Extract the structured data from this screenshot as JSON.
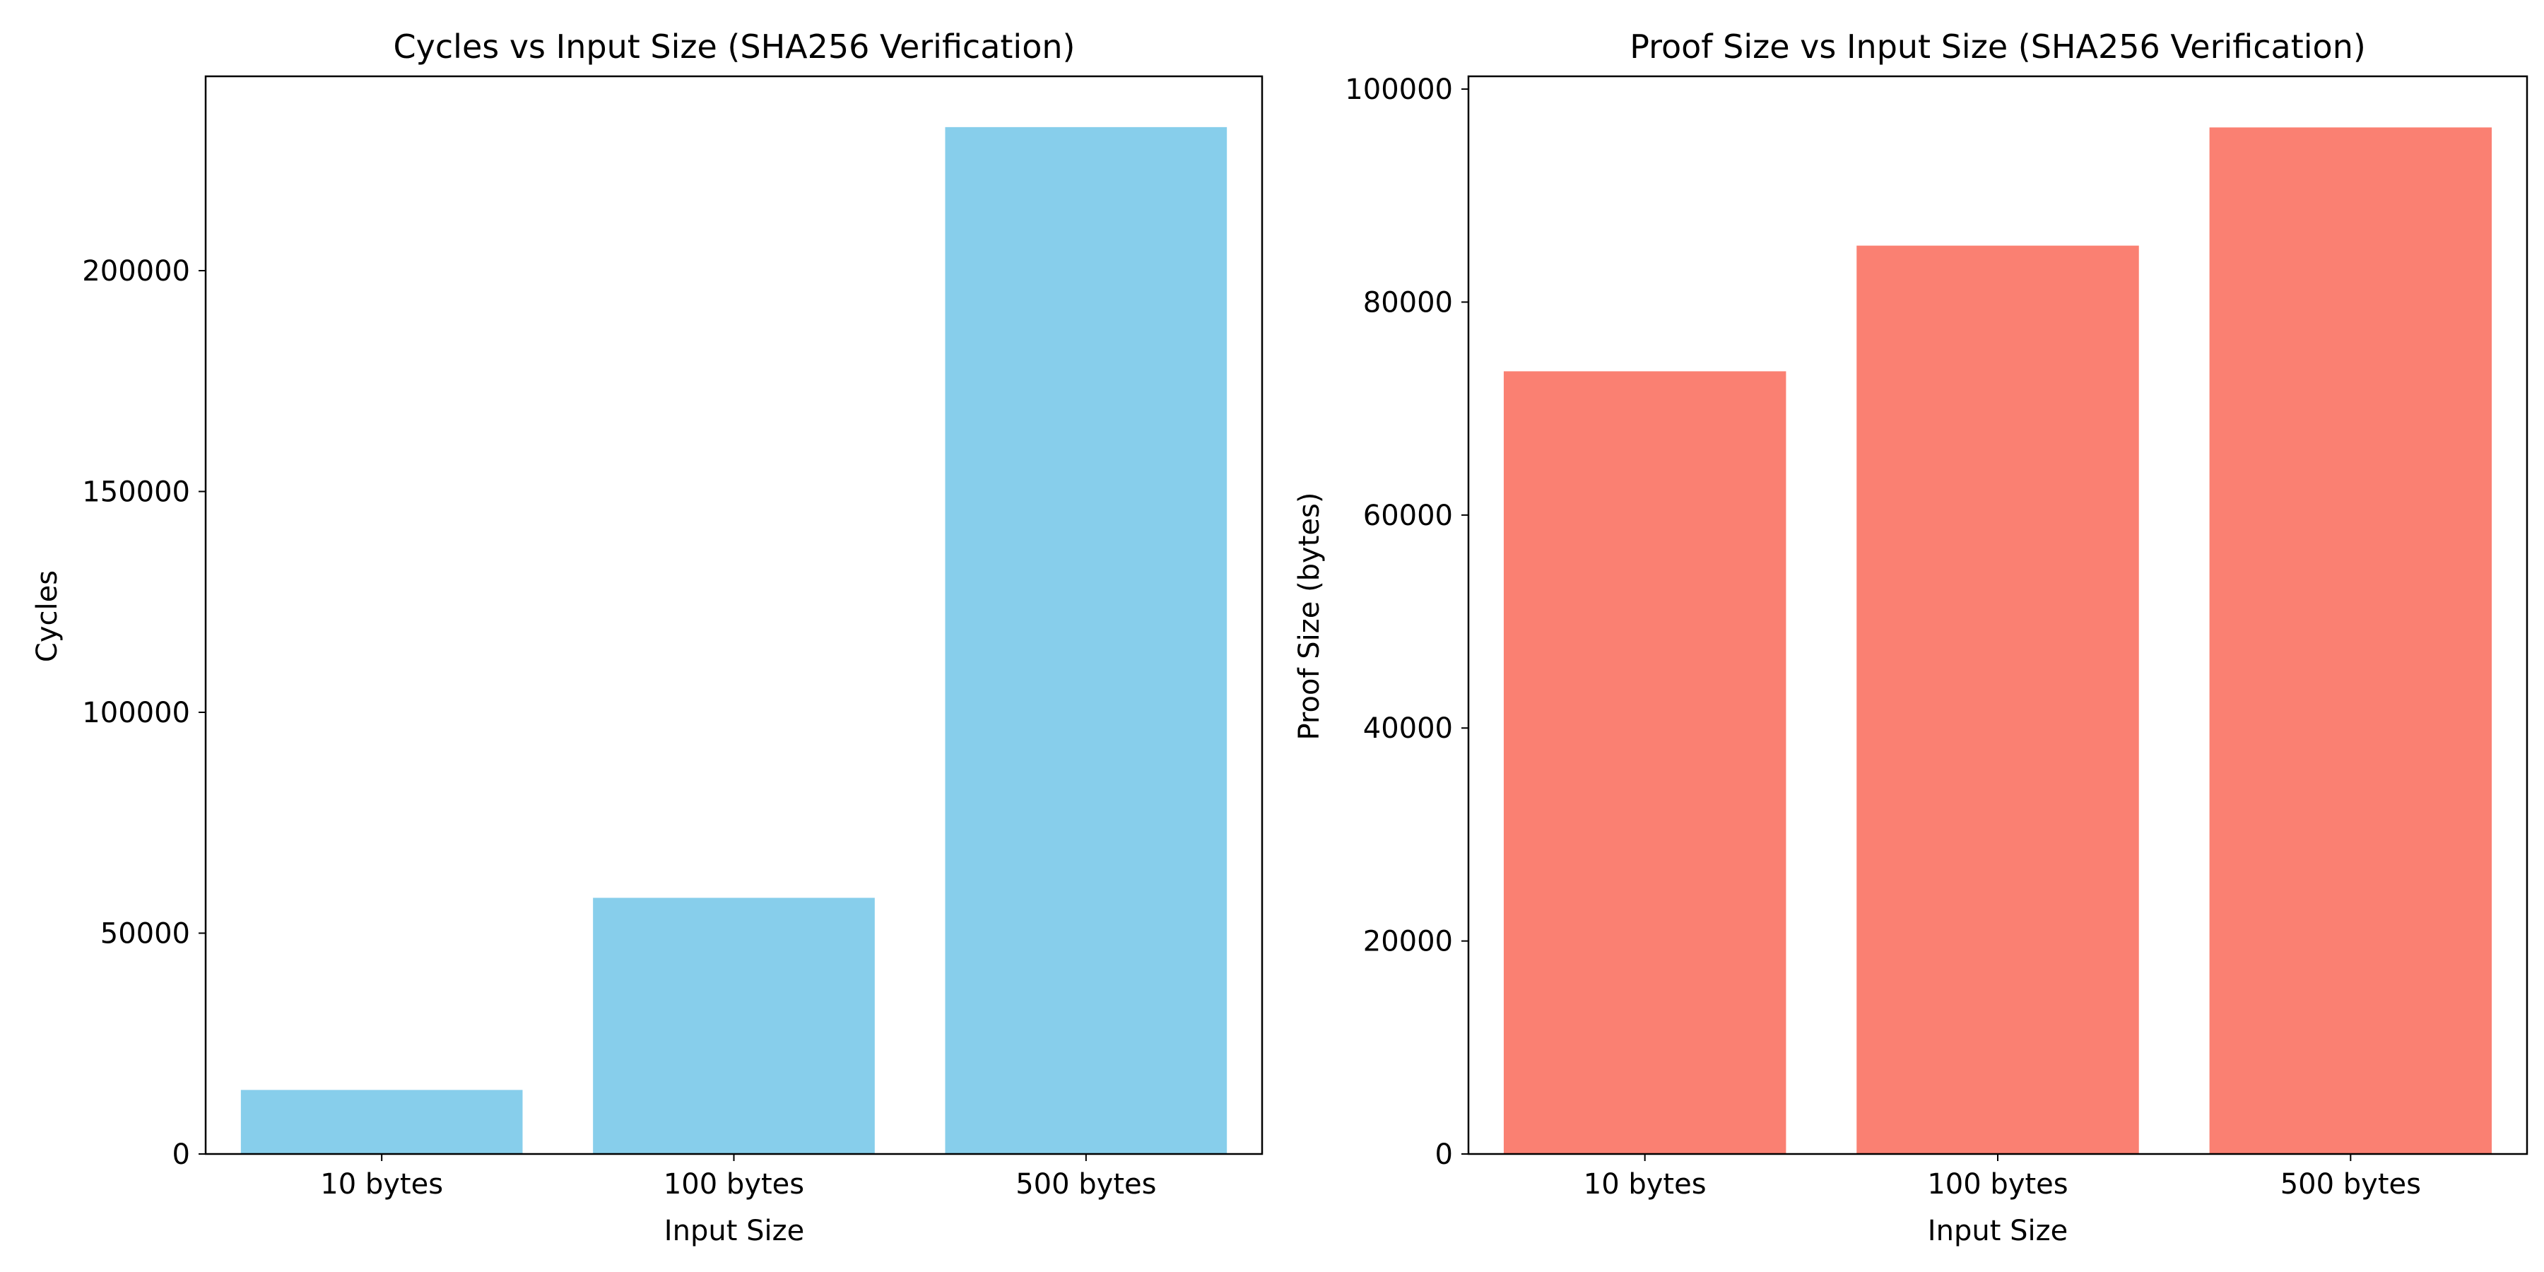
{
  "chart_data": [
    {
      "type": "bar",
      "title": "Cycles vs Input Size (SHA256 Verification)",
      "xlabel": "Input Size",
      "ylabel": "Cycles",
      "categories": [
        "10 bytes",
        "100 bytes",
        "500 bytes"
      ],
      "values": [
        14500,
        58000,
        232500
      ],
      "ylim": [
        0,
        244000
      ],
      "yticks": [
        0,
        50000,
        100000,
        150000,
        200000
      ],
      "color": "#87CEEB",
      "grid": false
    },
    {
      "type": "bar",
      "title": "Proof Size vs Input Size (SHA256 Verification)",
      "xlabel": "Input Size",
      "ylabel": "Proof Size (bytes)",
      "categories": [
        "10 bytes",
        "100 bytes",
        "500 bytes"
      ],
      "values": [
        73500,
        85300,
        96400
      ],
      "ylim": [
        0,
        101200
      ],
      "yticks": [
        0,
        20000,
        40000,
        60000,
        80000,
        100000
      ],
      "color": "#FA8072",
      "grid": false
    }
  ]
}
